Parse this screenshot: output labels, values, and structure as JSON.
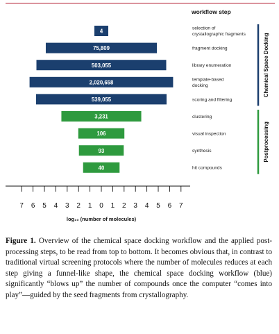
{
  "chart_data": {
    "type": "bar",
    "header": "workflow step",
    "xlabel": "log₁₀ (number of molecules)",
    "x_ticks": [
      "7",
      "6",
      "5",
      "4",
      "3",
      "2",
      "1",
      "0",
      "1",
      "2",
      "3",
      "4",
      "5",
      "6",
      "7"
    ],
    "xlim": [
      -7,
      7
    ],
    "bars": [
      {
        "step": "selection of crystallographic fragments",
        "step_lines": [
          "selection of",
          "crystallographic fragments"
        ],
        "label": "4",
        "value": 4,
        "group": "chemical_space_docking"
      },
      {
        "step": "fragment docking",
        "step_lines": [
          "fragment docking"
        ],
        "label": "75,809",
        "value": 75809,
        "group": "chemical_space_docking"
      },
      {
        "step": "library enumeration",
        "step_lines": [
          "library enumeration"
        ],
        "label": "503,055",
        "value": 503055,
        "group": "chemical_space_docking"
      },
      {
        "step": "template-based docking",
        "step_lines": [
          "template-based",
          "docking"
        ],
        "label": "2,020,658",
        "value": 2020658,
        "group": "chemical_space_docking"
      },
      {
        "step": "scoring and filtering",
        "step_lines": [
          "scoring and filtering"
        ],
        "label": "539,055",
        "value": 539055,
        "group": "chemical_space_docking"
      },
      {
        "step": "clustering",
        "step_lines": [
          "clustering"
        ],
        "label": "3,231",
        "value": 3231,
        "group": "postprocessing"
      },
      {
        "step": "visual inspection",
        "step_lines": [
          "visual inspection"
        ],
        "label": "106",
        "value": 106,
        "group": "postprocessing"
      },
      {
        "step": "synthesis",
        "step_lines": [
          "synthesis"
        ],
        "label": "93",
        "value": 93,
        "group": "postprocessing"
      },
      {
        "step": "hit compounds",
        "step_lines": [
          "hit compounds"
        ],
        "label": "40",
        "value": 40,
        "group": "postprocessing"
      }
    ],
    "groups": [
      {
        "key": "chemical_space_docking",
        "label": "Chemical Space Docking",
        "color": "#1b3f6e"
      },
      {
        "key": "postprocessing",
        "label": "Postprocessing",
        "color": "#2e9a3e"
      }
    ]
  },
  "caption": {
    "label": "Figure 1.",
    "text": " Overview of the chemical space docking workflow and the applied post-processing steps, to be read from top to bottom. It becomes obvious that, in contrast to traditional virtual screening protocols where the number of molecules reduces at each step giving a funnel-like shape, the chemical space docking workflow (blue) significantly “blows up” the number of compounds once the computer “comes into play”—guided by the seed fragments from crystallography."
  }
}
